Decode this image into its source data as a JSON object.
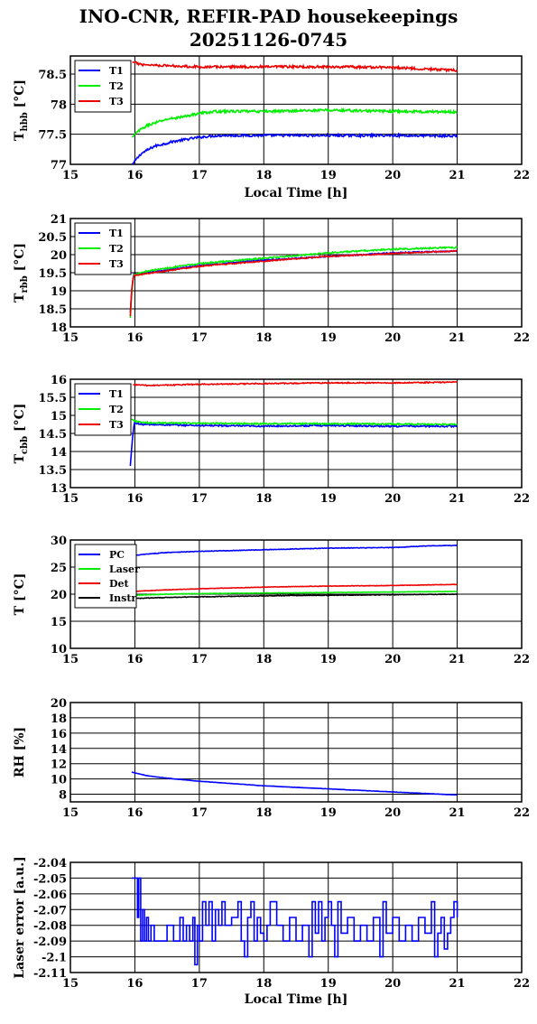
{
  "title": "INO-CNR, REFIR-PAD housekeepings",
  "subtitle": "20251126-0745",
  "colors": {
    "T1": "#0000ff",
    "T2": "#00ee00",
    "T3": "#ee0000",
    "PC": "#0000ff",
    "Laser": "#00ee00",
    "Det": "#ee0000",
    "Instr": "#000000"
  },
  "chart_data": [
    {
      "type": "line",
      "xlabel": "Local Time [h]",
      "ylabel": "Thbb [°C]",
      "ylabel_main": "T",
      "ylabel_sub": "hbb",
      "ylabel_unit": " [°C]",
      "xlim": [
        15,
        22
      ],
      "ylim": [
        77,
        78.8
      ],
      "xticks": [
        "15",
        "16",
        "17",
        "18",
        "19",
        "20",
        "21",
        "22"
      ],
      "yticks": [
        {
          "value": 77,
          "label": "77"
        },
        {
          "value": 77.5,
          "label": "77.5"
        },
        {
          "value": 78,
          "label": "78"
        },
        {
          "value": 78.5,
          "label": "78.5"
        }
      ],
      "legend": "top-left",
      "series": [
        {
          "name": "T1",
          "color": "#0000ff",
          "noise": 0.02,
          "x": [
            15.96,
            16.02,
            16.1,
            16.3,
            16.6,
            17.0,
            17.3,
            18,
            19,
            20,
            21
          ],
          "y": [
            77.0,
            77.08,
            77.18,
            77.3,
            77.38,
            77.45,
            77.48,
            77.48,
            77.48,
            77.48,
            77.47
          ]
        },
        {
          "name": "T2",
          "color": "#00ee00",
          "noise": 0.02,
          "x": [
            15.96,
            16.05,
            16.2,
            16.5,
            16.8,
            17.0,
            17.3,
            18,
            19,
            20,
            21
          ],
          "y": [
            77.45,
            77.55,
            77.65,
            77.75,
            77.8,
            77.85,
            77.88,
            77.88,
            77.9,
            77.88,
            77.87
          ]
        },
        {
          "name": "T3",
          "color": "#ee0000",
          "noise": 0.02,
          "x": [
            15.96,
            16.1,
            16.5,
            17,
            18,
            19,
            20,
            21
          ],
          "y": [
            78.7,
            78.66,
            78.64,
            78.62,
            78.62,
            78.62,
            78.61,
            78.56
          ]
        }
      ]
    },
    {
      "type": "line",
      "xlabel": "",
      "ylabel": "Trbb [°C]",
      "ylabel_main": "T",
      "ylabel_sub": "rbb",
      "ylabel_unit": " [°C]",
      "xlim": [
        15,
        22
      ],
      "ylim": [
        18,
        21
      ],
      "xticks": [
        "15",
        "16",
        "17",
        "18",
        "19",
        "20",
        "21",
        "22"
      ],
      "yticks": [
        {
          "value": 18,
          "label": "18"
        },
        {
          "value": 18.5,
          "label": "18.5"
        },
        {
          "value": 19,
          "label": "19"
        },
        {
          "value": 19.5,
          "label": "19.5"
        },
        {
          "value": 20,
          "label": "20"
        },
        {
          "value": 20.5,
          "label": "20.5"
        },
        {
          "value": 21,
          "label": "21"
        }
      ],
      "legend": "top-left",
      "series": [
        {
          "name": "T1",
          "color": "#0000ff",
          "noise": 0.015,
          "x": [
            15.93,
            15.95,
            15.98,
            16.2,
            17,
            18,
            19,
            20,
            21
          ],
          "y": [
            18.4,
            19.0,
            19.45,
            19.5,
            19.7,
            19.85,
            19.95,
            20.05,
            20.1
          ]
        },
        {
          "name": "T2",
          "color": "#00ee00",
          "noise": 0.02,
          "x": [
            15.93,
            15.95,
            15.98,
            16.2,
            17,
            18,
            19,
            20,
            21
          ],
          "y": [
            18.25,
            18.9,
            19.45,
            19.55,
            19.75,
            19.9,
            20.05,
            20.15,
            20.2
          ]
        },
        {
          "name": "T3",
          "color": "#ee0000",
          "noise": 0.015,
          "x": [
            15.93,
            15.95,
            15.98,
            16.2,
            17,
            18,
            19,
            20,
            21
          ],
          "y": [
            18.3,
            19.0,
            19.42,
            19.48,
            19.68,
            19.82,
            19.95,
            20.03,
            20.1
          ]
        }
      ]
    },
    {
      "type": "line",
      "xlabel": "",
      "ylabel": "Tcbb [°C]",
      "ylabel_main": "T",
      "ylabel_sub": "cbb",
      "ylabel_unit": " [°C]",
      "xlim": [
        15,
        22
      ],
      "ylim": [
        13,
        16
      ],
      "xticks": [
        "15",
        "16",
        "17",
        "18",
        "19",
        "20",
        "21",
        "22"
      ],
      "yticks": [
        {
          "value": 13,
          "label": "13"
        },
        {
          "value": 13.5,
          "label": "13.5"
        },
        {
          "value": 14,
          "label": "14"
        },
        {
          "value": 14.5,
          "label": "14.5"
        },
        {
          "value": 15,
          "label": "15"
        },
        {
          "value": 15.5,
          "label": "15.5"
        },
        {
          "value": 16,
          "label": "16"
        }
      ],
      "legend": "top-left",
      "series": [
        {
          "name": "T1",
          "color": "#0000ff",
          "noise": 0.02,
          "x": [
            15.93,
            15.96,
            15.99,
            16.1,
            17,
            18,
            19,
            20,
            21
          ],
          "y": [
            13.6,
            14.3,
            14.8,
            14.75,
            14.72,
            14.7,
            14.72,
            14.7,
            14.7
          ]
        },
        {
          "name": "T2",
          "color": "#00ee00",
          "noise": 0.02,
          "x": [
            15.95,
            15.99,
            16.1,
            17,
            18,
            19,
            20,
            21
          ],
          "y": [
            14.9,
            14.85,
            14.8,
            14.78,
            14.77,
            14.77,
            14.76,
            14.75
          ]
        },
        {
          "name": "T3",
          "color": "#ee0000",
          "noise": 0.015,
          "x": [
            15.97,
            16.2,
            17,
            18,
            19,
            20,
            21
          ],
          "y": [
            15.85,
            15.83,
            15.86,
            15.88,
            15.9,
            15.9,
            15.92
          ]
        }
      ]
    },
    {
      "type": "line",
      "xlabel": "",
      "ylabel": "T [°C]",
      "ylabel_main": "T",
      "ylabel_sub": "",
      "ylabel_unit": " [°C]",
      "xlim": [
        15,
        22
      ],
      "ylim": [
        10,
        30
      ],
      "xticks": [
        "15",
        "16",
        "17",
        "18",
        "19",
        "20",
        "21",
        "22"
      ],
      "yticks": [
        {
          "value": 10,
          "label": "10"
        },
        {
          "value": 15,
          "label": "15"
        },
        {
          "value": 20,
          "label": "20"
        },
        {
          "value": 25,
          "label": "25"
        },
        {
          "value": 30,
          "label": "30"
        }
      ],
      "legend": "top-left",
      "series": [
        {
          "name": "PC",
          "color": "#0000ff",
          "noise": 0.05,
          "x": [
            15.95,
            16.1,
            16.5,
            17,
            18,
            19,
            20,
            20.5,
            21
          ],
          "y": [
            27.0,
            27.3,
            27.7,
            27.9,
            28.2,
            28.5,
            28.6,
            28.9,
            29.0
          ]
        },
        {
          "name": "Laser",
          "color": "#00ee00",
          "noise": 0.04,
          "x": [
            15.95,
            16.5,
            17,
            18,
            19,
            20,
            21
          ],
          "y": [
            19.8,
            20.0,
            20.1,
            20.2,
            20.3,
            20.4,
            20.5
          ]
        },
        {
          "name": "Det",
          "color": "#ee0000",
          "noise": 0.04,
          "x": [
            15.95,
            16.5,
            17,
            18,
            19,
            20,
            21
          ],
          "y": [
            20.5,
            20.8,
            21.0,
            21.3,
            21.5,
            21.6,
            21.8
          ]
        },
        {
          "name": "Instr",
          "color": "#000000",
          "noise": 0.05,
          "x": [
            15.95,
            16.5,
            17,
            18,
            19,
            20,
            21
          ],
          "y": [
            19.2,
            19.4,
            19.5,
            19.7,
            19.8,
            19.9,
            20.0
          ]
        }
      ]
    },
    {
      "type": "line",
      "xlabel": "",
      "ylabel": "RH [%]",
      "ylabel_main": "RH [%]",
      "ylabel_sub": "",
      "ylabel_unit": "",
      "xlim": [
        15,
        22
      ],
      "ylim": [
        7,
        20
      ],
      "xticks": [
        "15",
        "16",
        "17",
        "18",
        "19",
        "20",
        "21",
        "22"
      ],
      "yticks": [
        {
          "value": 8,
          "label": "8"
        },
        {
          "value": 10,
          "label": "10"
        },
        {
          "value": 12,
          "label": "12"
        },
        {
          "value": 14,
          "label": "14"
        },
        {
          "value": 16,
          "label": "16"
        },
        {
          "value": 18,
          "label": "18"
        },
        {
          "value": 20,
          "label": "20"
        }
      ],
      "legend": "none",
      "series": [
        {
          "color": "#0000ff",
          "noise": 0.02,
          "x": [
            15.95,
            16.2,
            16.5,
            17,
            17.5,
            18,
            18.5,
            19,
            19.5,
            20,
            20.5,
            21
          ],
          "y": [
            10.9,
            10.4,
            10.1,
            9.7,
            9.4,
            9.1,
            8.9,
            8.7,
            8.5,
            8.3,
            8.1,
            7.9
          ]
        }
      ]
    },
    {
      "type": "line",
      "xlabel": "Local Time [h]",
      "ylabel": "Laser error [a.u.]",
      "ylabel_main": "Laser error [a.u.]",
      "ylabel_sub": "",
      "ylabel_unit": "",
      "xlim": [
        15,
        22
      ],
      "ylim": [
        -2.11,
        -2.04
      ],
      "xticks": [
        "15",
        "16",
        "17",
        "18",
        "19",
        "20",
        "21",
        "22"
      ],
      "yticks": [
        {
          "value": -2.11,
          "label": "-2.11"
        },
        {
          "value": -2.1,
          "label": "-2.1"
        },
        {
          "value": -2.09,
          "label": "-2.09"
        },
        {
          "value": -2.08,
          "label": "-2.08"
        },
        {
          "value": -2.07,
          "label": "-2.07"
        },
        {
          "value": -2.06,
          "label": "-2.06"
        },
        {
          "value": -2.05,
          "label": "-2.05"
        },
        {
          "value": -2.04,
          "label": "-2.04"
        }
      ],
      "legend": "none",
      "series": [
        {
          "color": "#0000ff",
          "step": true,
          "x": [
            15.95,
            16.0,
            16.04,
            16.06,
            16.09,
            16.12,
            16.15,
            16.18,
            16.21,
            16.25,
            16.3,
            16.4,
            16.5,
            16.6,
            16.7,
            16.75,
            16.8,
            16.85,
            16.9,
            16.93,
            16.97,
            17.0,
            17.05,
            17.1,
            17.15,
            17.2,
            17.25,
            17.3,
            17.35,
            17.4,
            17.5,
            17.6,
            17.65,
            17.7,
            17.75,
            17.8,
            17.85,
            17.9,
            17.95,
            18.0,
            18.05,
            18.1,
            18.2,
            18.3,
            18.4,
            18.5,
            18.6,
            18.7,
            18.75,
            18.8,
            18.85,
            18.9,
            18.95,
            19.0,
            19.05,
            19.1,
            19.15,
            19.2,
            19.3,
            19.4,
            19.5,
            19.6,
            19.7,
            19.8,
            19.85,
            19.9,
            20.0,
            20.1,
            20.2,
            20.3,
            20.4,
            20.5,
            20.6,
            20.65,
            20.7,
            20.75,
            20.8,
            20.85,
            20.9,
            20.95,
            21.0
          ],
          "y": [
            -2.05,
            -2.05,
            -2.075,
            -2.05,
            -2.09,
            -2.07,
            -2.09,
            -2.075,
            -2.09,
            -2.08,
            -2.09,
            -2.09,
            -2.08,
            -2.09,
            -2.075,
            -2.09,
            -2.08,
            -2.09,
            -2.075,
            -2.105,
            -2.08,
            -2.09,
            -2.065,
            -2.08,
            -2.065,
            -2.09,
            -2.07,
            -2.08,
            -2.065,
            -2.08,
            -2.075,
            -2.065,
            -2.09,
            -2.1,
            -2.075,
            -2.065,
            -2.09,
            -2.075,
            -2.085,
            -2.09,
            -2.08,
            -2.065,
            -2.08,
            -2.09,
            -2.075,
            -2.09,
            -2.08,
            -2.1,
            -2.065,
            -2.085,
            -2.065,
            -2.09,
            -2.075,
            -2.065,
            -2.08,
            -2.1,
            -2.065,
            -2.085,
            -2.075,
            -2.09,
            -2.08,
            -2.09,
            -2.075,
            -2.1,
            -2.065,
            -2.085,
            -2.075,
            -2.09,
            -2.08,
            -2.09,
            -2.075,
            -2.085,
            -2.065,
            -2.1,
            -2.085,
            -2.075,
            -2.095,
            -2.085,
            -2.075,
            -2.065,
            -2.075
          ]
        }
      ]
    }
  ]
}
